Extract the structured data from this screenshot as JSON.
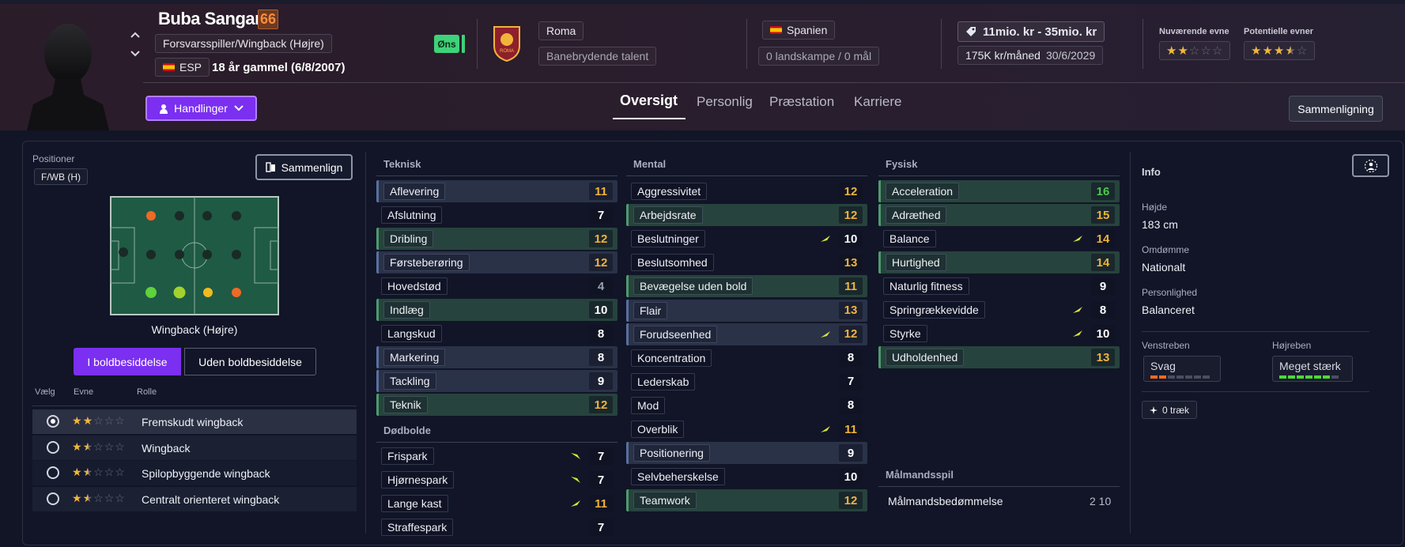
{
  "player": {
    "name": "Buba Sangaré",
    "rating": "66",
    "position": "Forsvarsspiller/Wingback (Højre)",
    "nationality": "ESP",
    "age_text": "18 år gammel (6/8/2007)",
    "wish_badge": "Øns"
  },
  "club": {
    "name": "Roma",
    "status": "Banebrydende talent",
    "crest_text": "ROMA"
  },
  "nation": {
    "name": "Spanien",
    "caps": "0 landskampe / 0 mål"
  },
  "contract": {
    "value": "11mio. kr - 35mio. kr",
    "wage": "175K kr/måned",
    "expiry": "30/6/2029"
  },
  "abilities": {
    "current_label": "Nuværende evne",
    "current_stars": 2,
    "potential_label": "Potentielle evner",
    "potential_stars": 3.5
  },
  "actions_label": "Handlinger",
  "tabs": [
    "Oversigt",
    "Personlig",
    "Præstation",
    "Karriere"
  ],
  "compare_button": "Sammenligning",
  "left": {
    "positions_label": "Positioner",
    "position_value": "F/WB (H)",
    "compare_small": "Sammenlign",
    "role_title": "Wingback (Højre)",
    "toggle": [
      "I boldbesiddelse",
      "Uden boldbesiddelse"
    ],
    "cols": [
      "Vælg",
      "Evne",
      "Rolle"
    ],
    "roles": [
      {
        "name": "Fremskudt wingback",
        "stars": 2,
        "selected": true
      },
      {
        "name": "Wingback",
        "stars": 1.5,
        "selected": false
      },
      {
        "name": "Spilopbyggende wingback",
        "stars": 1.5,
        "selected": false
      },
      {
        "name": "Centralt orienteret wingback",
        "stars": 1.5,
        "selected": false
      }
    ]
  },
  "technical": {
    "title": "Teknisk",
    "rows": [
      {
        "name": "Aflevering",
        "value": "11",
        "hl": "blue"
      },
      {
        "name": "Afslutning",
        "value": "7",
        "hl": ""
      },
      {
        "name": "Dribling",
        "value": "12",
        "hl": "green"
      },
      {
        "name": "Førsteberøring",
        "value": "12",
        "hl": "blue"
      },
      {
        "name": "Hovedstød",
        "value": "4",
        "hl": ""
      },
      {
        "name": "Indlæg",
        "value": "10",
        "hl": "green"
      },
      {
        "name": "Langskud",
        "value": "8",
        "hl": ""
      },
      {
        "name": "Markering",
        "value": "8",
        "hl": "blue"
      },
      {
        "name": "Tackling",
        "value": "9",
        "hl": "blue"
      },
      {
        "name": "Teknik",
        "value": "12",
        "hl": "green"
      }
    ]
  },
  "setpieces": {
    "title": "Dødbolde",
    "rows": [
      {
        "name": "Frispark",
        "value": "7",
        "hl": "",
        "arrow": "down"
      },
      {
        "name": "Hjørnespark",
        "value": "7",
        "hl": "",
        "arrow": "down"
      },
      {
        "name": "Lange kast",
        "value": "11",
        "hl": "",
        "arrow": "up"
      },
      {
        "name": "Straffespark",
        "value": "7",
        "hl": ""
      }
    ]
  },
  "mental": {
    "title": "Mental",
    "rows": [
      {
        "name": "Aggressivitet",
        "value": "12",
        "hl": ""
      },
      {
        "name": "Arbejdsrate",
        "value": "12",
        "hl": "green"
      },
      {
        "name": "Beslutninger",
        "value": "10",
        "hl": "",
        "arrow": "up"
      },
      {
        "name": "Beslutsomhed",
        "value": "13",
        "hl": ""
      },
      {
        "name": "Bevægelse uden bold",
        "value": "11",
        "hl": "green"
      },
      {
        "name": "Flair",
        "value": "13",
        "hl": "blue"
      },
      {
        "name": "Forudseenhed",
        "value": "12",
        "hl": "blue",
        "arrow": "up"
      },
      {
        "name": "Koncentration",
        "value": "8",
        "hl": ""
      },
      {
        "name": "Lederskab",
        "value": "7",
        "hl": ""
      },
      {
        "name": "Mod",
        "value": "8",
        "hl": ""
      },
      {
        "name": "Overblik",
        "value": "11",
        "hl": "",
        "arrow": "up"
      },
      {
        "name": "Positionering",
        "value": "9",
        "hl": "blue"
      },
      {
        "name": "Selvbeherskelse",
        "value": "10",
        "hl": ""
      },
      {
        "name": "Teamwork",
        "value": "12",
        "hl": "green"
      }
    ]
  },
  "physical": {
    "title": "Fysisk",
    "rows": [
      {
        "name": "Acceleration",
        "value": "16",
        "hl": "green"
      },
      {
        "name": "Adræthed",
        "value": "15",
        "hl": "green"
      },
      {
        "name": "Balance",
        "value": "14",
        "hl": "",
        "arrow": "up"
      },
      {
        "name": "Hurtighed",
        "value": "14",
        "hl": "green"
      },
      {
        "name": "Naturlig fitness",
        "value": "9",
        "hl": ""
      },
      {
        "name": "Springrækkevidde",
        "value": "8",
        "hl": "",
        "arrow": "up"
      },
      {
        "name": "Styrke",
        "value": "10",
        "hl": "",
        "arrow": "up"
      },
      {
        "name": "Udholdenhed",
        "value": "13",
        "hl": "green"
      }
    ]
  },
  "goalkeeping": {
    "title": "Målmandsspil",
    "label": "Målmandsbedømmelse",
    "value": "2 10"
  },
  "info": {
    "title": "Info",
    "height_label": "Højde",
    "height": "183 cm",
    "rep_label": "Omdømme",
    "rep": "Nationalt",
    "pers_label": "Personlighed",
    "pers": "Balanceret",
    "left_foot_label": "Venstreben",
    "left_foot": "Svag",
    "left_foot_level": 2,
    "right_foot_label": "Højreben",
    "right_foot": "Meget stærk",
    "right_foot_level": 6,
    "traits": "0 træk"
  },
  "colors": {
    "accent": "#7b2ff0",
    "star": "#f0b73d",
    "green_val": "#4cc94c",
    "orange_val": "#f2b33a",
    "white_val": "#ffffff",
    "grey_val": "#9aa0ad",
    "arrow": "#d8e63a"
  },
  "icons": [
    "chevron-up-icon",
    "chevron-down-icon",
    "person-icon",
    "compare-icon",
    "tag-icon",
    "sparkle-icon",
    "profile-icon"
  ]
}
